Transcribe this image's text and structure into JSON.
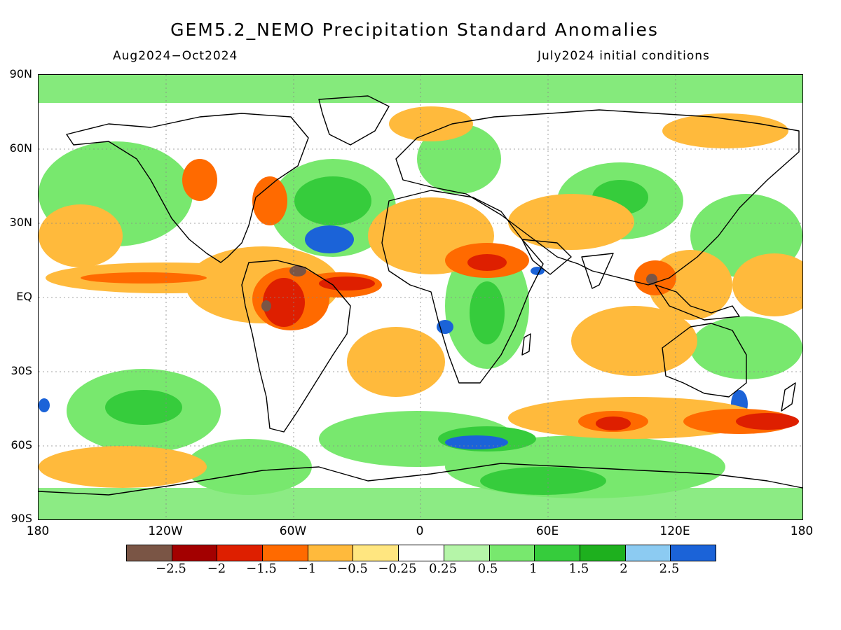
{
  "header": {
    "title": "GEM5.2_NEMO Precipitation Standard Anomalies",
    "period": "Aug2024−Oct2024",
    "init": "July2024 initial conditions"
  },
  "axes": {
    "lat_labels": [
      "90N",
      "60N",
      "30N",
      "EQ",
      "30S",
      "60S",
      "90S"
    ],
    "lon_labels": [
      "180",
      "120W",
      "60W",
      "0",
      "60E",
      "120E",
      "180"
    ]
  },
  "map": {
    "projection": "cylindrical equidistant",
    "grid": "dotted",
    "background_color": "#ffffff"
  },
  "colorbar": {
    "colors": [
      "#7a5545",
      "#a30000",
      "#de1f00",
      "#ff6a00",
      "#ffba3c",
      "#ffe680",
      "#ffffff",
      "#b5f5a8",
      "#78e86e",
      "#36cc3c",
      "#1eb01e",
      "#8ccbf2",
      "#1b63d8"
    ],
    "labels": [
      "−2.5",
      "−2",
      "−1.5",
      "−1",
      "−0.5",
      "−0.25",
      "0.25",
      "0.5",
      "1",
      "1.5",
      "2",
      "2.5"
    ]
  }
}
